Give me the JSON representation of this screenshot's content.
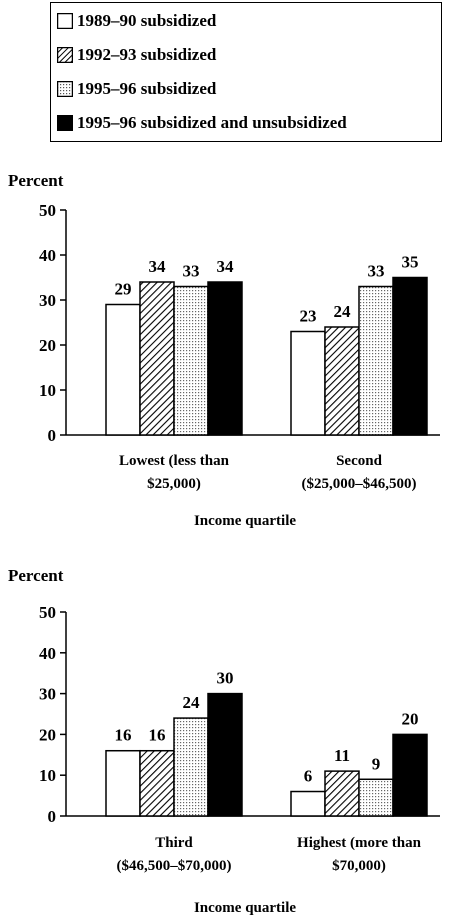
{
  "legend": [
    {
      "label": "1989–90 subsidized",
      "pattern": "white"
    },
    {
      "label": "1992–93 subsidized",
      "pattern": "hatch"
    },
    {
      "label": "1995–96 subsidized",
      "pattern": "dots"
    },
    {
      "label": "1995–96 subsidized and unsubsidized",
      "pattern": "black"
    }
  ],
  "chart_data": [
    {
      "type": "bar",
      "ylabel": "Percent",
      "xlabel": "Income quartile",
      "ylim": [
        0,
        50
      ],
      "yticks": [
        "0",
        "10",
        "20",
        "30",
        "40",
        "50"
      ],
      "categories": [
        {
          "line1": "Lowest (less than",
          "line2": "$25,000)"
        },
        {
          "line1": "Second",
          "line2": "($25,000–$46,500)"
        }
      ],
      "series": [
        {
          "name": "1989–90 subsidized",
          "values": [
            29,
            23
          ],
          "labels": [
            "29",
            "23"
          ]
        },
        {
          "name": "1992–93 subsidized",
          "values": [
            34,
            24
          ],
          "labels": [
            "34",
            "24"
          ]
        },
        {
          "name": "1995–96 subsidized",
          "values": [
            33,
            33
          ],
          "labels": [
            "33",
            "33"
          ]
        },
        {
          "name": "1995–96 subsidized and unsubsidized",
          "values": [
            34,
            35
          ],
          "labels": [
            "34",
            "35"
          ]
        }
      ]
    },
    {
      "type": "bar",
      "ylabel": "Percent",
      "xlabel": "Income quartile",
      "ylim": [
        0,
        50
      ],
      "yticks": [
        "0",
        "10",
        "20",
        "30",
        "40",
        "50"
      ],
      "categories": [
        {
          "line1": "Third",
          "line2": "($46,500–$70,000)"
        },
        {
          "line1": "Highest (more than",
          "line2": "$70,000)"
        }
      ],
      "series": [
        {
          "name": "1989–90 subsidized",
          "values": [
            16,
            6
          ],
          "labels": [
            "16",
            "6"
          ]
        },
        {
          "name": "1992–93 subsidized",
          "values": [
            16,
            11
          ],
          "labels": [
            "16",
            "11"
          ]
        },
        {
          "name": "1995–96 subsidized",
          "values": [
            24,
            9
          ],
          "labels": [
            "24",
            "9"
          ]
        },
        {
          "name": "1995–96 subsidized and unsubsidized",
          "values": [
            30,
            20
          ],
          "labels": [
            "30",
            "20"
          ]
        }
      ]
    }
  ]
}
